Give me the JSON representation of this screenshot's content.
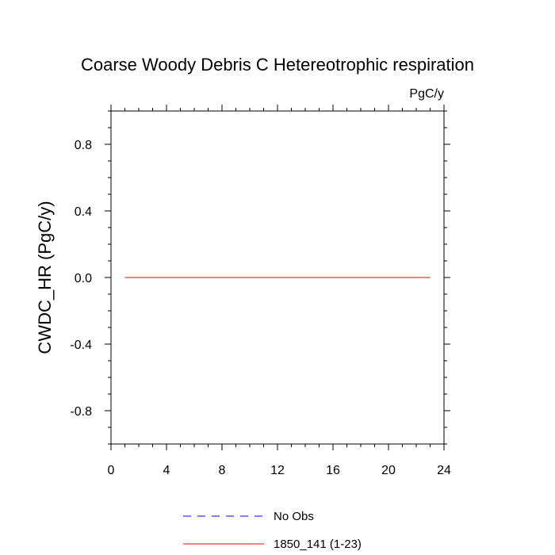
{
  "chart_data": {
    "type": "line",
    "title": "Coarse Woody Debris C Hetereotrophic respiration",
    "units": "PgC/y",
    "xlabel": "",
    "ylabel": "CWDC_HR  (PgC/y)",
    "xlim": [
      0,
      24
    ],
    "ylim": [
      -1,
      1
    ],
    "x_ticks": [
      0,
      4,
      8,
      12,
      16,
      20,
      24
    ],
    "y_ticks": [
      -0.8,
      -0.4,
      0.0,
      0.4,
      0.8
    ],
    "y_tick_labels": [
      "-0.8",
      "-0.4",
      "0.0",
      "0.4",
      "0.8"
    ],
    "grid": false,
    "legend_position": "bottom",
    "series": [
      {
        "name": "1850_141 (1-23)",
        "color": "#ff0000",
        "style": "solid",
        "x": [
          1,
          2,
          3,
          4,
          5,
          6,
          7,
          8,
          9,
          10,
          11,
          12,
          13,
          14,
          15,
          16,
          17,
          18,
          19,
          20,
          21,
          22,
          23
        ],
        "y": [
          0,
          0,
          0,
          0,
          0,
          0,
          0,
          0,
          0,
          0,
          0,
          0,
          0,
          0,
          0,
          0,
          0,
          0,
          0,
          0,
          0,
          0,
          0
        ]
      }
    ],
    "legend": [
      {
        "label": "No Obs",
        "color": "#0000ff",
        "style": "dashed"
      },
      {
        "label": "1850_141 (1-23)",
        "color": "#ff0000",
        "style": "solid"
      }
    ]
  }
}
